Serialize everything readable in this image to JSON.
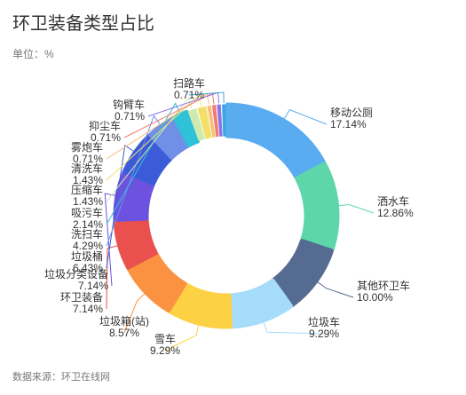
{
  "page": {
    "title": "环卫装备类型占比",
    "unit": "单位：%",
    "source": "数据来源：环卫在线网"
  },
  "chart_data": {
    "type": "pie",
    "title": "环卫装备类型占比",
    "unit": "%",
    "inner_radius_ratio": 0.72,
    "slices": [
      {
        "name": "移动公厕",
        "value": 17.14,
        "label": "17.14%",
        "color": "#5aacf0"
      },
      {
        "name": "洒水车",
        "value": 12.86,
        "label": "12.86%",
        "color": "#5dd6aa"
      },
      {
        "name": "其他环卫车",
        "value": 10.0,
        "label": "10.00%",
        "color": "#566b92"
      },
      {
        "name": "垃圾车",
        "value": 9.29,
        "label": "9.29%",
        "color": "#a5dcfa"
      },
      {
        "name": "雪车",
        "value": 9.29,
        "label": "9.29%",
        "color": "#fcd244"
      },
      {
        "name": "垃圾箱(站)",
        "value": 8.57,
        "label": "8.57%",
        "color": "#fa9242"
      },
      {
        "name": "环卫装备",
        "value": 7.14,
        "label": "7.14%",
        "color": "#e9504e"
      },
      {
        "name": "垃圾分类设备",
        "value": 7.14,
        "label": "7.14%",
        "color": "#6d52e0"
      },
      {
        "name": "垃圾桶",
        "value": 6.43,
        "label": "6.43%",
        "color": "#3c5bd8"
      },
      {
        "name": "洗扫车",
        "value": 4.29,
        "label": "4.29%",
        "color": "#6f90e6"
      },
      {
        "name": "吸污车",
        "value": 2.14,
        "label": "2.14%",
        "color": "#2ec1d8"
      },
      {
        "name": "压缩车",
        "value": 1.43,
        "label": "1.43%",
        "color": "#cdebb0"
      },
      {
        "name": "清洗车",
        "value": 1.43,
        "label": "1.43%",
        "color": "#f3e06a"
      },
      {
        "name": "雾炮车",
        "value": 0.71,
        "label": "0.71%",
        "color": "#f5c07a"
      },
      {
        "name": "抑尘车",
        "value": 0.71,
        "label": "0.71%",
        "color": "#f27a72"
      },
      {
        "name": "钩臂车",
        "value": 0.71,
        "label": "0.71%",
        "color": "#8a74e8"
      },
      {
        "name": "扫路车",
        "value": 0.71,
        "label": "0.71%",
        "color": "#3fa7e0"
      }
    ]
  }
}
